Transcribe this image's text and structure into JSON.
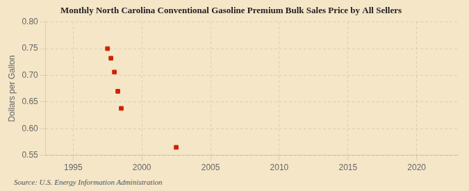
{
  "chart_data": {
    "type": "scatter",
    "title": "Monthly North Carolina Conventional Gasoline Premium Bulk Sales Price by All Sellers",
    "ylabel": "Dollars per Gallon",
    "annotations": [
      "Source: U.S. Energy Information Administration"
    ],
    "x": [
      1997.5,
      1997.75,
      1998.0,
      1998.25,
      1998.5,
      2002.5
    ],
    "values": [
      0.75,
      0.732,
      0.706,
      0.67,
      0.638,
      0.565
    ],
    "xlim": [
      1993,
      2023
    ],
    "ylim": [
      0.55,
      0.8
    ],
    "xticks": [
      1995,
      2000,
      2005,
      2010,
      2015,
      2020
    ],
    "yticks": [
      0.55,
      {
        "value": 0.6,
        "label": "0.60"
      },
      0.65,
      {
        "value": 0.7,
        "label": "0.70"
      },
      0.75,
      {
        "value": 0.8,
        "label": "0.80"
      }
    ],
    "color": "#cc2200",
    "marker": "square",
    "grid": true
  }
}
